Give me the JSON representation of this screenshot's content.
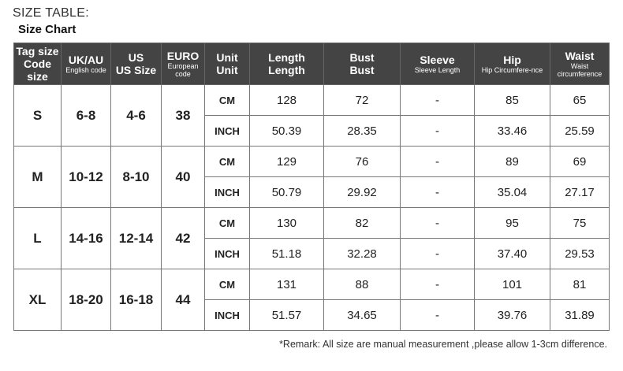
{
  "title": "SIZE TABLE:",
  "subtitle": "Size Chart",
  "headers": [
    {
      "main": "Tag size",
      "sub": "Code size",
      "sub_small": false
    },
    {
      "main": "UK/AU",
      "sub": "English code",
      "sub_small": true
    },
    {
      "main": "US",
      "sub": "US Size",
      "sub_small": false
    },
    {
      "main": "EURO",
      "sub": "European code",
      "sub_small": true
    },
    {
      "main": "Unit",
      "sub": "Unit",
      "sub_small": false
    },
    {
      "main": "Length",
      "sub": "Length",
      "sub_small": false
    },
    {
      "main": "Bust",
      "sub": "Bust",
      "sub_small": false
    },
    {
      "main": "Sleeve",
      "sub": "Sleeve Length",
      "sub_small": true
    },
    {
      "main": "Hip",
      "sub": "Hip Circumfere-nce",
      "sub_small": true
    },
    {
      "main": "Waist",
      "sub": "Waist circumference",
      "sub_small": true
    }
  ],
  "rows": [
    {
      "tag": "S",
      "uk": "6-8",
      "us": "4-6",
      "euro": "38",
      "cm": [
        "CM",
        "128",
        "72",
        "-",
        "85",
        "65"
      ],
      "inch": [
        "INCH",
        "50.39",
        "28.35",
        "-",
        "33.46",
        "25.59"
      ]
    },
    {
      "tag": "M",
      "uk": "10-12",
      "us": "8-10",
      "euro": "40",
      "cm": [
        "CM",
        "129",
        "76",
        "-",
        "89",
        "69"
      ],
      "inch": [
        "INCH",
        "50.79",
        "29.92",
        "-",
        "35.04",
        "27.17"
      ]
    },
    {
      "tag": "L",
      "uk": "14-16",
      "us": "12-14",
      "euro": "42",
      "cm": [
        "CM",
        "130",
        "82",
        "-",
        "95",
        "75"
      ],
      "inch": [
        "INCH",
        "51.18",
        "32.28",
        "-",
        "37.40",
        "29.53"
      ]
    },
    {
      "tag": "XL",
      "uk": "18-20",
      "us": "16-18",
      "euro": "44",
      "cm": [
        "CM",
        "131",
        "88",
        "-",
        "101",
        "81"
      ],
      "inch": [
        "INCH",
        "51.57",
        "34.65",
        "-",
        "39.76",
        "31.89"
      ]
    }
  ],
  "remark": "*Remark: All size are manual measurement ,please allow 1-3cm difference."
}
